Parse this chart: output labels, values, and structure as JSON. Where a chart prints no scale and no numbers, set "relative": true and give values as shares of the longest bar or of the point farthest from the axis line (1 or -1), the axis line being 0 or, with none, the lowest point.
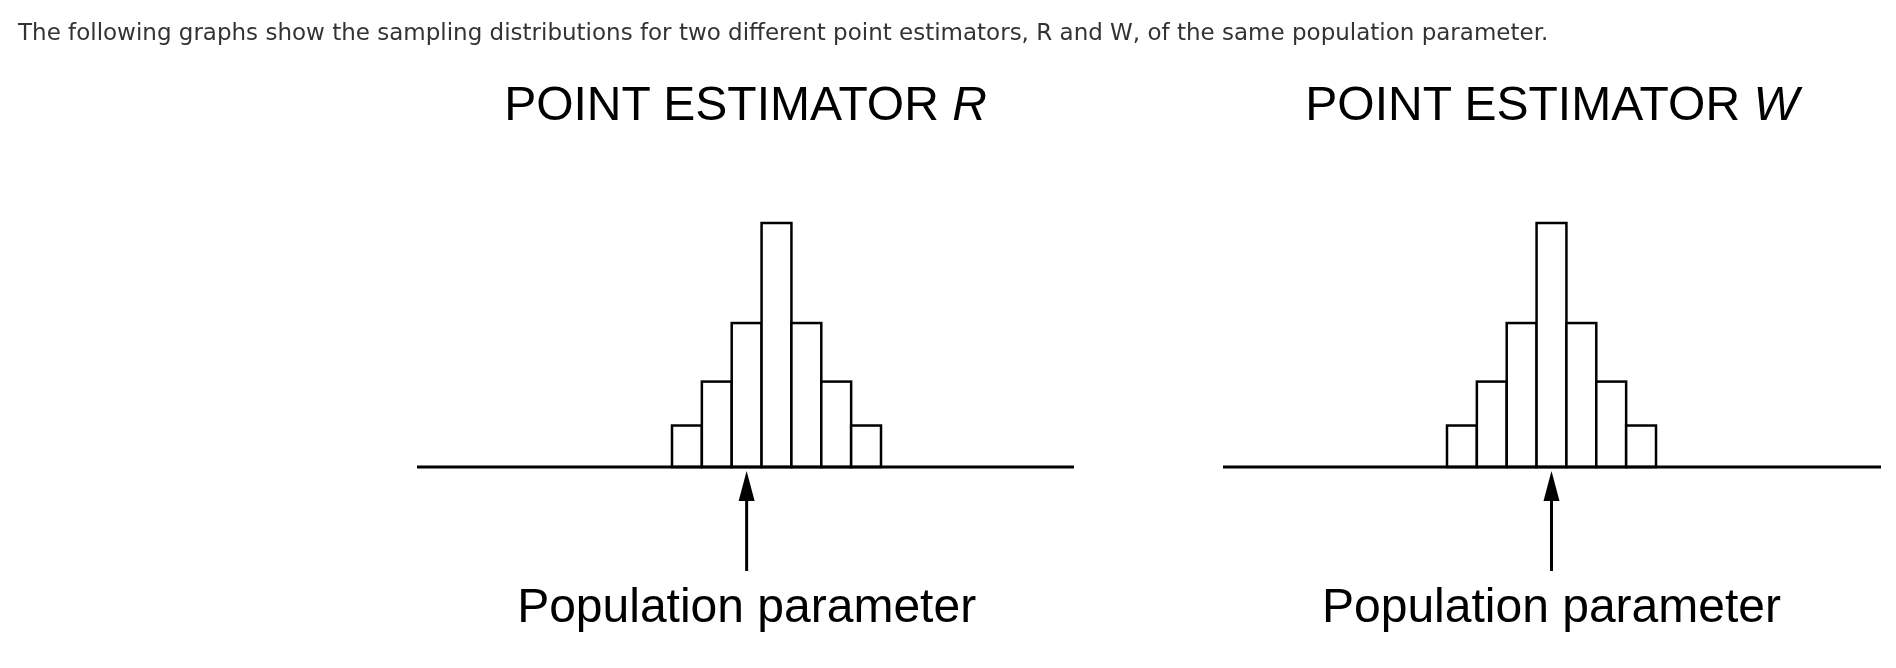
{
  "chart_data": [
    {
      "type": "bar",
      "title": "POINT ESTIMATOR R",
      "relative": true,
      "categories": [
        null,
        null,
        null,
        null,
        null,
        null,
        null
      ],
      "values": [
        0.17,
        0.35,
        0.59,
        1,
        0.59,
        0.35,
        0.17
      ],
      "color": "#ffffff",
      "annotations": [
        "The following graphs show the sampling distributions for two different point estimators, R and W, of the same population parameter.",
        "Population parameter"
      ]
    },
    {
      "type": "bar",
      "title": "POINT ESTIMATOR W",
      "relative": true,
      "categories": [
        null,
        null,
        null,
        null,
        null,
        null,
        null
      ],
      "values": [
        0.17,
        0.35,
        0.59,
        1,
        0.59,
        0.35,
        0.17
      ],
      "color": "#ffffff",
      "annotations": [
        "Population parameter"
      ]
    }
  ]
}
